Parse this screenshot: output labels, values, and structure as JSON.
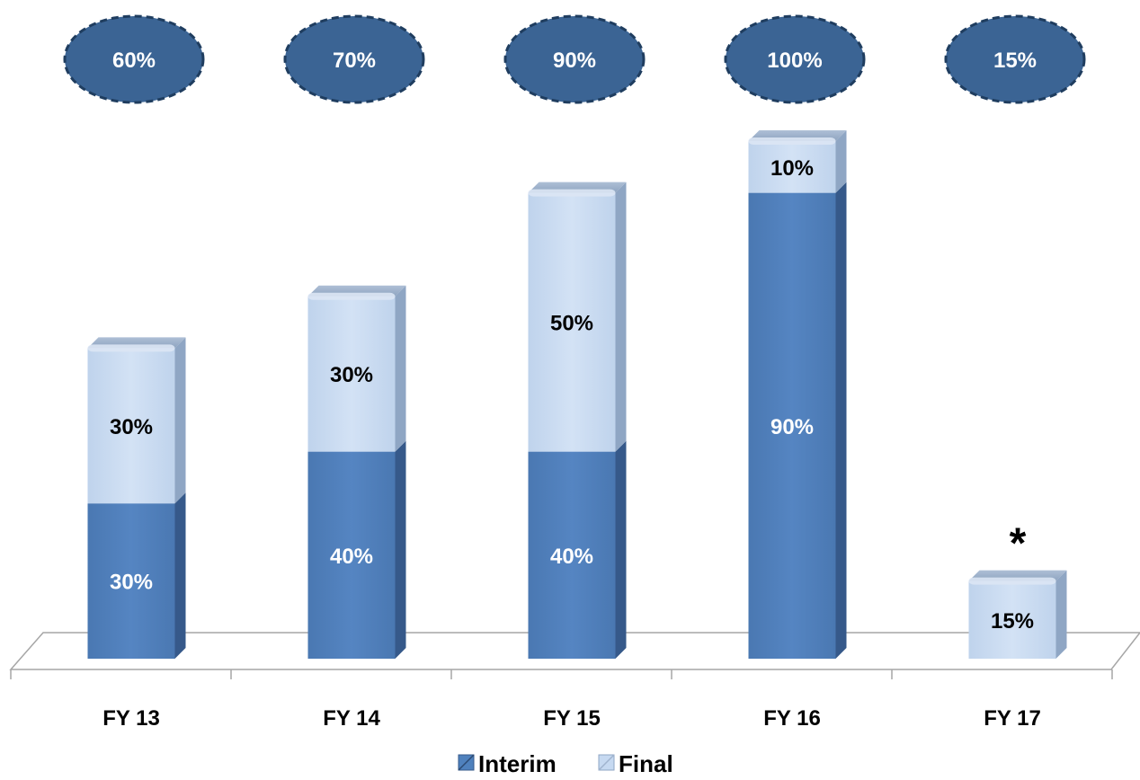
{
  "chart_data": {
    "type": "bar",
    "stacked": true,
    "categories": [
      "FY 13",
      "FY 14",
      "FY 15",
      "FY 16",
      "FY 17"
    ],
    "series": [
      {
        "name": "Interim",
        "values": [
          30,
          40,
          40,
          90,
          0
        ],
        "color": "#4f81bd"
      },
      {
        "name": "Final",
        "values": [
          30,
          30,
          50,
          10,
          15
        ],
        "color": "#c6d9f1"
      }
    ],
    "value_labels": [
      [
        "30%",
        "40%",
        "40%",
        "90%",
        ""
      ],
      [
        "30%",
        "30%",
        "50%",
        "10%",
        "15%"
      ]
    ],
    "totals": [
      "60%",
      "70%",
      "90%",
      "100%",
      "15%"
    ],
    "annotation": "*",
    "legend_position": "bottom",
    "grid": false,
    "ylim": [
      0,
      100
    ],
    "colors": {
      "total_badge": "#3b6494",
      "total_badge_border": "#1f3d5f",
      "axis": "#a6a6a6"
    }
  }
}
